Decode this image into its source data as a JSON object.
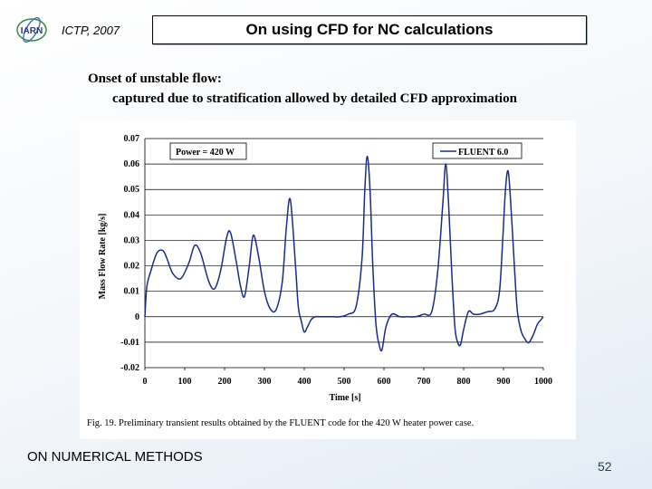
{
  "header": {
    "label": "ICTP, 2007",
    "title": "On using CFD for NC calculations",
    "logo_text": "IARN"
  },
  "subtitle": {
    "line1": "Onset of unstable flow:",
    "line2": "captured due to stratification allowed by detailed CFD approximation"
  },
  "chart_data": {
    "type": "line",
    "annotation": "Power = 420 W",
    "xlabel": "Time [s]",
    "ylabel": "Mass Flow Rate [kg/s]",
    "xlim": [
      0,
      1000
    ],
    "ylim": [
      -0.02,
      0.07
    ],
    "xticks": [
      "0",
      "100",
      "200",
      "300",
      "400",
      "500",
      "600",
      "700",
      "800",
      "900",
      "1000"
    ],
    "yticks": [
      "0.07",
      "0.06",
      "0.05",
      "0.04",
      "0.03",
      "0.02",
      "0.01",
      "0",
      "-0.01",
      "-0.02"
    ],
    "legend": "FLUENT 6.0",
    "legend_position": "top-right",
    "caption": "Fig. 19. Preliminary transient results obtained by the FLUENT code for the 420 W heater power case.",
    "line_color": "#1a2a8a",
    "series": [
      {
        "name": "FLUENT 6.0",
        "x": [
          0,
          5,
          15,
          30,
          45,
          55,
          70,
          90,
          110,
          125,
          140,
          160,
          175,
          190,
          205,
          215,
          230,
          240,
          250,
          262,
          272,
          285,
          300,
          315,
          330,
          345,
          355,
          365,
          378,
          385,
          393,
          400,
          408,
          418,
          428,
          440,
          455,
          470,
          490,
          510,
          530,
          545,
          552,
          558,
          565,
          572,
          580,
          588,
          595,
          605,
          620,
          640,
          660,
          680,
          700,
          720,
          735,
          748,
          755,
          762,
          770,
          778,
          785,
          792,
          800,
          812,
          825,
          840,
          860,
          878,
          890,
          898,
          905,
          912,
          920,
          928,
          935,
          945,
          955,
          960,
          965,
          975,
          985,
          995,
          1000
        ],
        "y": [
          0,
          0.012,
          0.018,
          0.025,
          0.026,
          0.023,
          0.017,
          0.015,
          0.021,
          0.028,
          0.025,
          0.014,
          0.011,
          0.018,
          0.031,
          0.033,
          0.021,
          0.012,
          0.008,
          0.02,
          0.032,
          0.024,
          0.01,
          0.003,
          0.003,
          0.014,
          0.035,
          0.046,
          0.02,
          0.004,
          -0.002,
          -0.006,
          -0.004,
          -0.001,
          0,
          0,
          0,
          0,
          0,
          0.001,
          0.004,
          0.023,
          0.05,
          0.063,
          0.05,
          0.02,
          -0.003,
          -0.011,
          -0.013,
          -0.004,
          0.001,
          0,
          0,
          0,
          0.001,
          0.002,
          0.018,
          0.045,
          0.06,
          0.045,
          0.018,
          -0.004,
          -0.01,
          -0.011,
          -0.005,
          0.002,
          0.001,
          0.001,
          0.002,
          0.003,
          0.01,
          0.03,
          0.05,
          0.057,
          0.04,
          0.018,
          0.002,
          -0.006,
          -0.009,
          -0.01,
          -0.01,
          -0.007,
          -0.003,
          -0.001,
          0
        ]
      }
    ]
  },
  "footer": {
    "left": "ON NUMERICAL METHODS",
    "page": "52"
  }
}
